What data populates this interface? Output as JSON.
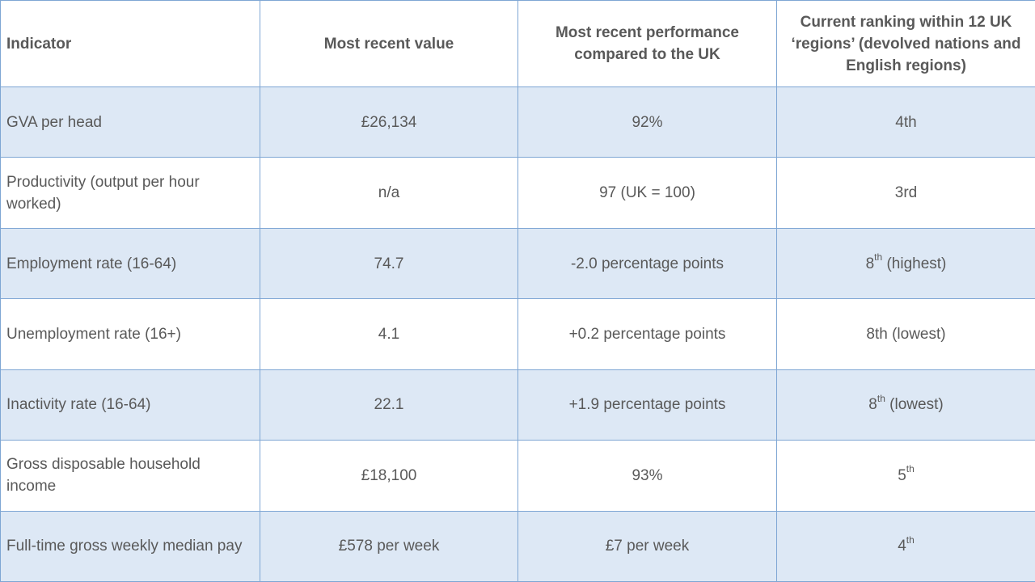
{
  "headers": [
    "Indicator",
    "Most recent value",
    "Most recent performance compared to the UK",
    "Current ranking within  12 UK ‘regions’ (devolved nations and English regions)"
  ],
  "rows": [
    {
      "indicator": "GVA per head",
      "value": "£26,134",
      "performance": "92%",
      "rank": "4th",
      "rank_sup": "",
      "rank_suffix": ""
    },
    {
      "indicator": "Productivity (output per hour worked)",
      "value": "n/a",
      "performance": "97 (UK = 100)",
      "rank": "3rd",
      "rank_sup": "",
      "rank_suffix": ""
    },
    {
      "indicator": "Employment  rate (16-64)",
      "value": "74.7",
      "performance": "-2.0 percentage points",
      "rank": "8",
      "rank_sup": "th",
      "rank_suffix": " (highest)"
    },
    {
      "indicator": "Unemployment  rate (16+)",
      "value": "4.1",
      "performance": "+0.2 percentage points",
      "rank": "8th (lowest)",
      "rank_sup": "",
      "rank_suffix": ""
    },
    {
      "indicator": "Inactivity rate (16-64)",
      "value": "22.1",
      "performance": "+1.9 percentage points",
      "rank": "8",
      "rank_sup": "th",
      "rank_suffix": " (lowest)"
    },
    {
      "indicator": "Gross disposable household income",
      "value": "£18,100",
      "performance": "93%",
      "rank": "5",
      "rank_sup": "th",
      "rank_suffix": ""
    },
    {
      "indicator": "Full-time gross weekly median pay",
      "value": "£578 per week",
      "performance": "£7 per week",
      "rank": "4",
      "rank_sup": "th",
      "rank_suffix": ""
    }
  ]
}
